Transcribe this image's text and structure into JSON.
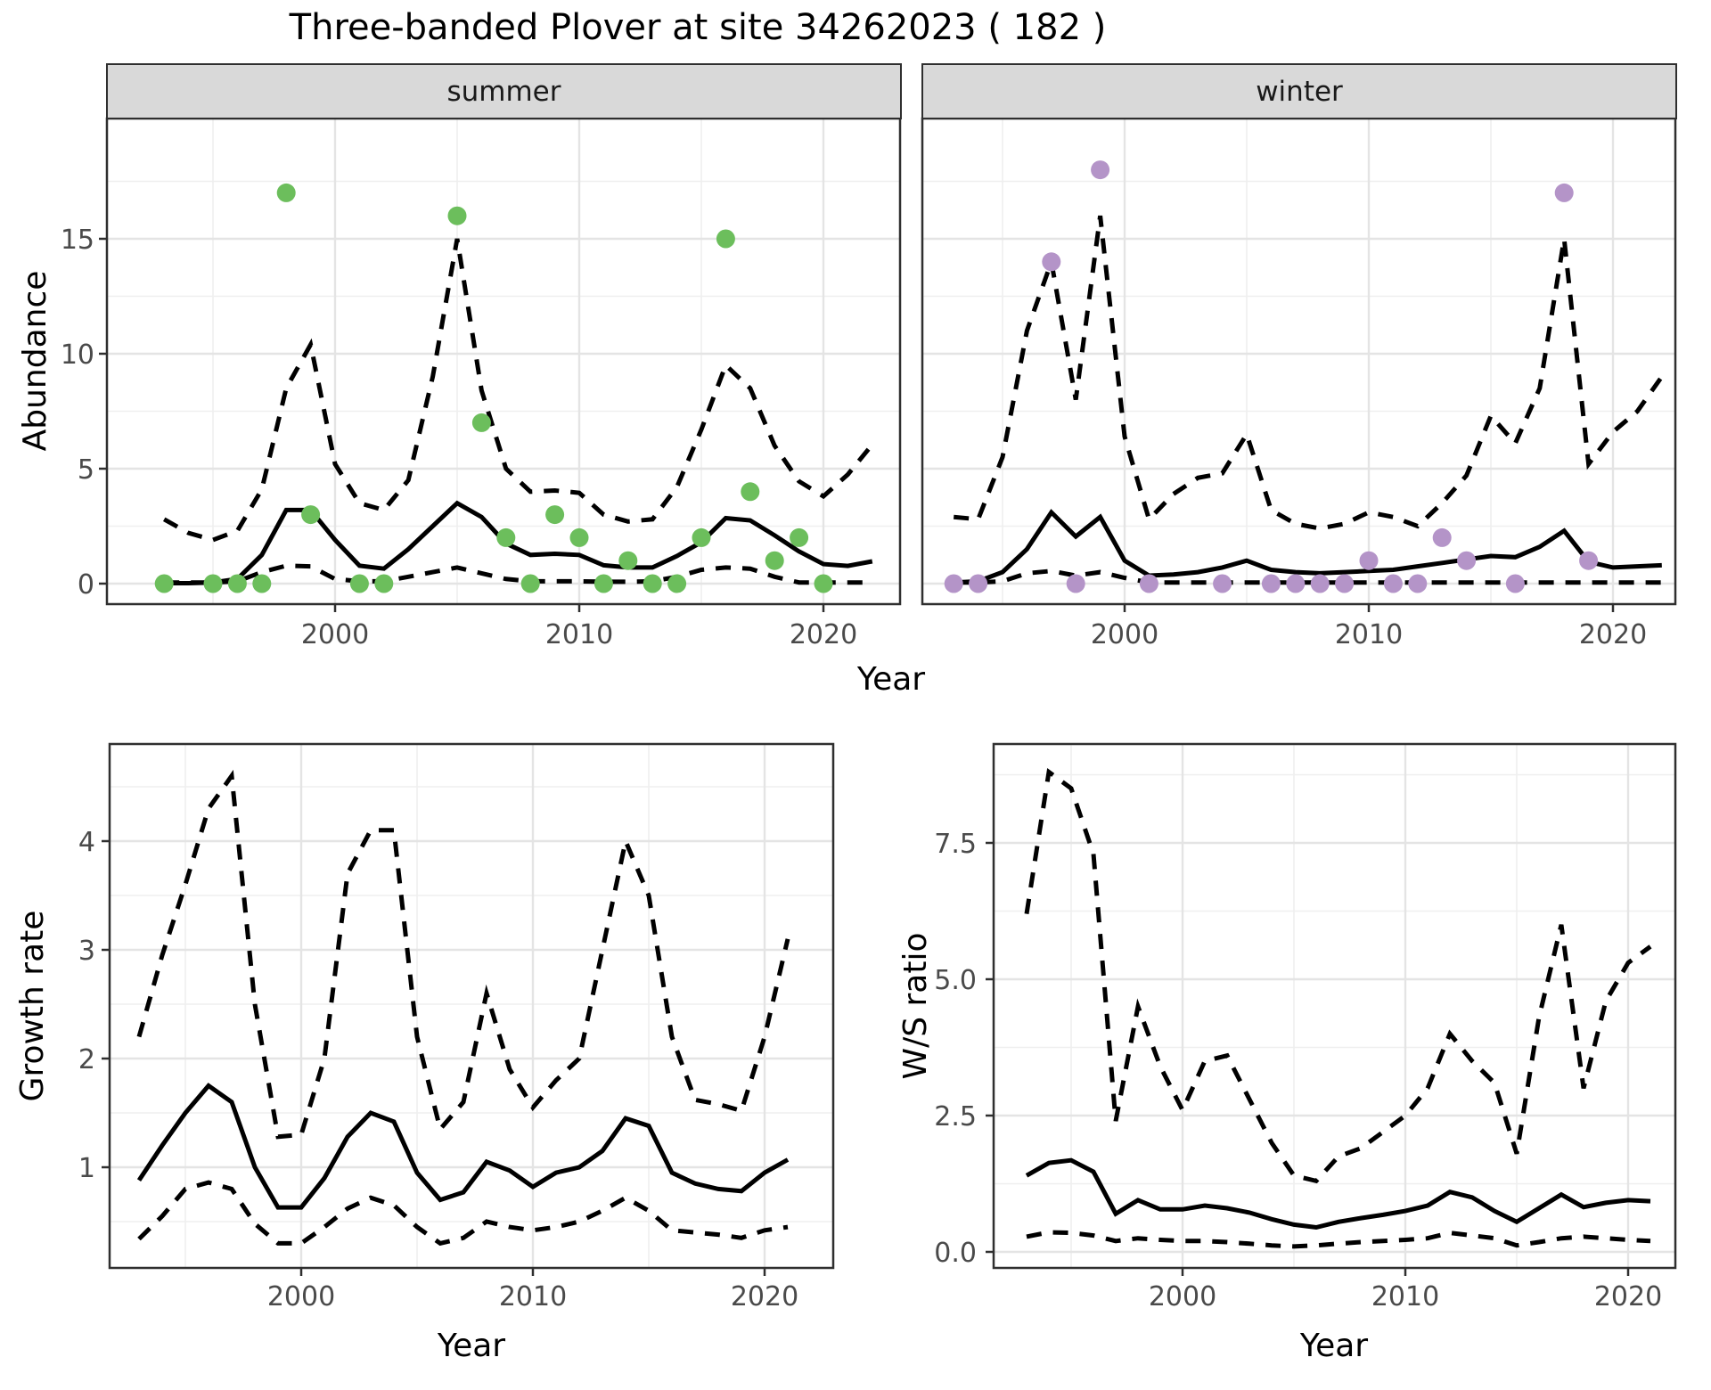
{
  "title": "Three-banded Plover at site 34262023 ( 182 )",
  "facets": [
    "summer",
    "winter"
  ],
  "axes": {
    "abundance": "Abundance",
    "year": "Year",
    "growth": "Growth rate",
    "ws": "W/S ratio"
  },
  "colors": {
    "summer_points": "#6CBE5C",
    "winter_points": "#B494C8",
    "line": "#000000",
    "grid_major": "#E4E4E4",
    "grid_minor": "#EFEFEF",
    "panel_border": "#2F2F2F",
    "tick_text": "#4A4A4A",
    "strip_bg": "#D9D9D9"
  },
  "chart_data": [
    {
      "type": "line",
      "facet": "summer",
      "title": "summer",
      "xlabel": "Year",
      "ylabel": "Abundance",
      "xlim": [
        1990.7,
        2022.9
      ],
      "ylim": [
        -0.9,
        20.2
      ],
      "x_ticks": [
        2000,
        2010,
        2020
      ],
      "x_minor": [
        1995,
        2005,
        2015
      ],
      "y_ticks": [
        0,
        5,
        10,
        15
      ],
      "y_minor": [
        2.5,
        7.5,
        12.5,
        17.5
      ],
      "grid": true,
      "legend": false,
      "series": [
        {
          "name": "observed_counts",
          "kind": "points",
          "color": "#6CBE5C",
          "x": [
            1993,
            1995,
            1996,
            1997,
            1998,
            1999,
            2001,
            2002,
            2005,
            2006,
            2007,
            2008,
            2009,
            2010,
            2011,
            2012,
            2013,
            2014,
            2015,
            2016,
            2017,
            2018,
            2019,
            2020
          ],
          "y": [
            0,
            0,
            0,
            0,
            17,
            3,
            0,
            0,
            16,
            7,
            2,
            0,
            3,
            2,
            0,
            1,
            0,
            0,
            2,
            15,
            4,
            1,
            2,
            0
          ]
        },
        {
          "name": "mean",
          "kind": "line",
          "style": "solid",
          "x": [
            1993,
            1994,
            1995,
            1996,
            1997,
            1998,
            1999,
            2000,
            2001,
            2002,
            2003,
            2004,
            2005,
            2006,
            2007,
            2008,
            2009,
            2010,
            2011,
            2012,
            2013,
            2014,
            2015,
            2016,
            2017,
            2018,
            2019,
            2020,
            2021,
            2022
          ],
          "y": [
            0.02,
            0.02,
            0.05,
            0.2,
            1.25,
            3.2,
            3.2,
            1.9,
            0.78,
            0.65,
            1.5,
            2.5,
            3.5,
            2.9,
            1.75,
            1.25,
            1.3,
            1.25,
            0.8,
            0.7,
            0.7,
            1.2,
            1.8,
            2.85,
            2.75,
            2.1,
            1.4,
            0.85,
            0.77,
            0.97
          ]
        },
        {
          "name": "upper_ci",
          "kind": "line",
          "style": "dashed",
          "x": [
            1993,
            1994,
            1995,
            1996,
            1997,
            1998,
            1999,
            2000,
            2001,
            2002,
            2003,
            2004,
            2005,
            2006,
            2007,
            2008,
            2009,
            2010,
            2011,
            2012,
            2013,
            2014,
            2015,
            2016,
            2017,
            2018,
            2019,
            2020,
            2021,
            2022
          ],
          "y": [
            2.8,
            2.2,
            1.9,
            2.3,
            4.1,
            8.5,
            10.4,
            5.2,
            3.5,
            3.2,
            4.5,
            9.0,
            15.0,
            8.4,
            5.0,
            4.0,
            4.05,
            3.95,
            3.0,
            2.7,
            2.8,
            4.2,
            6.7,
            9.5,
            8.5,
            6.0,
            4.45,
            3.8,
            4.75,
            6.05
          ]
        },
        {
          "name": "lower_ci",
          "kind": "line",
          "style": "dashed",
          "x": [
            1993,
            1994,
            1995,
            1996,
            1997,
            1998,
            1999,
            2000,
            2001,
            2002,
            2003,
            2004,
            2005,
            2006,
            2007,
            2008,
            2009,
            2010,
            2011,
            2012,
            2013,
            2014,
            2015,
            2016,
            2017,
            2018,
            2019,
            2020,
            2021,
            2022
          ],
          "y": [
            0.05,
            0.05,
            0.05,
            0.1,
            0.5,
            0.78,
            0.75,
            0.2,
            0.1,
            0.1,
            0.3,
            0.5,
            0.7,
            0.45,
            0.2,
            0.1,
            0.1,
            0.1,
            0.08,
            0.08,
            0.1,
            0.3,
            0.6,
            0.7,
            0.65,
            0.3,
            0.05,
            0.05,
            0.05,
            0.05
          ]
        }
      ]
    },
    {
      "type": "line",
      "facet": "winter",
      "title": "winter",
      "xlabel": "Year",
      "ylabel": "Abundance",
      "xlim": [
        1991.7,
        2022.6
      ],
      "ylim": [
        -0.9,
        20.2
      ],
      "x_ticks": [
        2000,
        2010,
        2020
      ],
      "x_minor": [
        1995,
        2005,
        2015
      ],
      "y_ticks": [
        0,
        5,
        10,
        15
      ],
      "y_minor": [
        2.5,
        7.5,
        12.5,
        17.5
      ],
      "grid": true,
      "legend": false,
      "series": [
        {
          "name": "observed_counts",
          "kind": "points",
          "color": "#B494C8",
          "x": [
            1993,
            1994,
            1997,
            1998,
            1999,
            2001,
            2004,
            2006,
            2007,
            2008,
            2009,
            2010,
            2011,
            2012,
            2013,
            2014,
            2016,
            2018,
            2019
          ],
          "y": [
            0,
            0,
            14,
            0,
            18,
            0,
            0,
            0,
            0,
            0,
            0,
            1,
            0,
            0,
            2,
            1,
            0,
            17,
            1
          ]
        },
        {
          "name": "mean",
          "kind": "line",
          "style": "solid",
          "x": [
            1993,
            1994,
            1995,
            1996,
            1997,
            1998,
            1999,
            2000,
            2001,
            2002,
            2003,
            2004,
            2005,
            2006,
            2007,
            2008,
            2009,
            2010,
            2011,
            2012,
            2013,
            2014,
            2015,
            2016,
            2017,
            2018,
            2019,
            2020,
            2021,
            2022
          ],
          "y": [
            0.05,
            0.1,
            0.5,
            1.5,
            3.1,
            2.05,
            2.9,
            1.0,
            0.35,
            0.4,
            0.5,
            0.7,
            1.0,
            0.6,
            0.5,
            0.45,
            0.5,
            0.55,
            0.6,
            0.75,
            0.9,
            1.05,
            1.2,
            1.15,
            1.6,
            2.3,
            0.95,
            0.7,
            0.75,
            0.8
          ]
        },
        {
          "name": "upper_ci",
          "kind": "line",
          "style": "dashed",
          "x": [
            1993,
            1994,
            1995,
            1996,
            1997,
            1998,
            1999,
            2000,
            2001,
            2002,
            2003,
            2004,
            2005,
            2006,
            2007,
            2008,
            2009,
            2010,
            2011,
            2012,
            2013,
            2014,
            2015,
            2016,
            2017,
            2018,
            2019,
            2020,
            2021,
            2022
          ],
          "y": [
            2.9,
            2.8,
            5.5,
            11.0,
            14.0,
            8.0,
            16.0,
            6.4,
            2.8,
            3.9,
            4.6,
            4.8,
            6.5,
            3.2,
            2.6,
            2.4,
            2.6,
            3.1,
            2.9,
            2.5,
            3.5,
            4.7,
            7.3,
            6.1,
            8.5,
            15.0,
            5.2,
            6.6,
            7.5,
            9.0
          ]
        },
        {
          "name": "lower_ci",
          "kind": "line",
          "style": "dashed",
          "x": [
            1993,
            1994,
            1995,
            1996,
            1997,
            1998,
            1999,
            2000,
            2001,
            2002,
            2003,
            2004,
            2005,
            2006,
            2007,
            2008,
            2009,
            2010,
            2011,
            2012,
            2013,
            2014,
            2015,
            2016,
            2017,
            2018,
            2019,
            2020,
            2021,
            2022
          ],
          "y": [
            0.05,
            0.05,
            0.1,
            0.45,
            0.55,
            0.35,
            0.5,
            0.25,
            0.05,
            0.05,
            0.05,
            0.05,
            0.05,
            0.05,
            0.05,
            0.05,
            0.05,
            0.05,
            0.05,
            0.05,
            0.05,
            0.05,
            0.05,
            0.05,
            0.05,
            0.05,
            0.05,
            0.05,
            0.05,
            0.05
          ]
        }
      ]
    },
    {
      "type": "line",
      "facet": "growth",
      "title": "Growth rate",
      "xlabel": "Year",
      "ylabel": "Growth rate",
      "xlim": [
        1991.7,
        2022.9
      ],
      "ylim": [
        0.07,
        4.89
      ],
      "x_ticks": [
        2000,
        2010,
        2020
      ],
      "x_minor": [
        1995,
        2005,
        2015
      ],
      "y_ticks": [
        1,
        2,
        3,
        4
      ],
      "y_minor": [
        0.5,
        1.5,
        2.5,
        3.5,
        4.5
      ],
      "grid": true,
      "legend": false,
      "series": [
        {
          "name": "mean",
          "kind": "line",
          "style": "solid",
          "x": [
            1993,
            1994,
            1995,
            1996,
            1997,
            1998,
            1999,
            2000,
            2001,
            2002,
            2003,
            2004,
            2005,
            2006,
            2007,
            2008,
            2009,
            2010,
            2011,
            2012,
            2013,
            2014,
            2015,
            2016,
            2017,
            2018,
            2019,
            2020,
            2021
          ],
          "y": [
            0.88,
            1.2,
            1.5,
            1.75,
            1.6,
            1.0,
            0.63,
            0.63,
            0.9,
            1.28,
            1.5,
            1.42,
            0.95,
            0.7,
            0.77,
            1.05,
            0.97,
            0.82,
            0.95,
            1.0,
            1.15,
            1.45,
            1.38,
            0.95,
            0.85,
            0.8,
            0.78,
            0.95,
            1.07
          ]
        },
        {
          "name": "upper_ci",
          "kind": "line",
          "style": "dashed",
          "x": [
            1993,
            1994,
            1995,
            1996,
            1997,
            1998,
            1999,
            2000,
            2001,
            2002,
            2003,
            2004,
            2005,
            2006,
            2007,
            2008,
            2009,
            2010,
            2011,
            2012,
            2013,
            2014,
            2015,
            2016,
            2017,
            2018,
            2019,
            2020,
            2021
          ],
          "y": [
            2.2,
            2.95,
            3.6,
            4.3,
            4.6,
            2.5,
            1.28,
            1.3,
            2.0,
            3.7,
            4.1,
            4.1,
            2.2,
            1.35,
            1.6,
            2.6,
            1.9,
            1.55,
            1.8,
            2.0,
            3.0,
            4.0,
            3.5,
            2.2,
            1.62,
            1.58,
            1.52,
            2.2,
            3.1
          ]
        },
        {
          "name": "lower_ci",
          "kind": "line",
          "style": "dashed",
          "x": [
            1993,
            1994,
            1995,
            1996,
            1997,
            1998,
            1999,
            2000,
            2001,
            2002,
            2003,
            2004,
            2005,
            2006,
            2007,
            2008,
            2009,
            2010,
            2011,
            2012,
            2013,
            2014,
            2015,
            2016,
            2017,
            2018,
            2019,
            2020,
            2021
          ],
          "y": [
            0.34,
            0.55,
            0.8,
            0.86,
            0.8,
            0.48,
            0.3,
            0.3,
            0.45,
            0.62,
            0.72,
            0.65,
            0.45,
            0.3,
            0.35,
            0.5,
            0.45,
            0.42,
            0.45,
            0.5,
            0.6,
            0.72,
            0.6,
            0.42,
            0.4,
            0.38,
            0.35,
            0.42,
            0.45
          ]
        }
      ]
    },
    {
      "type": "line",
      "facet": "ws",
      "title": "W/S ratio",
      "xlabel": "Year",
      "ylabel": "W/S ratio",
      "xlim": [
        1991.5,
        2022.1
      ],
      "ylim": [
        -0.3,
        9.3
      ],
      "x_ticks": [
        2000,
        2010,
        2020
      ],
      "x_minor": [
        1995,
        2005,
        2015
      ],
      "y_ticks": [
        0.0,
        2.5,
        5.0,
        7.5
      ],
      "y_tick_labels": [
        "0.0",
        "2.5",
        "5.0",
        "7.5"
      ],
      "y_minor": [
        1.25,
        3.75,
        6.25,
        8.75
      ],
      "grid": true,
      "legend": false,
      "series": [
        {
          "name": "mean",
          "kind": "line",
          "style": "solid",
          "x": [
            1993,
            1994,
            1995,
            1996,
            1997,
            1998,
            1999,
            2000,
            2001,
            2002,
            2003,
            2004,
            2005,
            2006,
            2007,
            2008,
            2009,
            2010,
            2011,
            2012,
            2013,
            2014,
            2015,
            2016,
            2017,
            2018,
            2019,
            2020,
            2021
          ],
          "y": [
            1.4,
            1.63,
            1.68,
            1.47,
            0.7,
            0.95,
            0.78,
            0.78,
            0.85,
            0.8,
            0.72,
            0.6,
            0.5,
            0.45,
            0.55,
            0.62,
            0.68,
            0.75,
            0.85,
            1.1,
            1.0,
            0.75,
            0.55,
            0.8,
            1.05,
            0.82,
            0.9,
            0.95,
            0.93
          ]
        },
        {
          "name": "upper_ci",
          "kind": "line",
          "style": "dashed",
          "x": [
            1993,
            1994,
            1995,
            1996,
            1997,
            1998,
            1999,
            2000,
            2001,
            2002,
            2003,
            2004,
            2005,
            2006,
            2007,
            2008,
            2009,
            2010,
            2011,
            2012,
            2013,
            2014,
            2015,
            2016,
            2017,
            2018,
            2019,
            2020,
            2021
          ],
          "y": [
            6.2,
            8.8,
            8.5,
            7.3,
            2.4,
            4.5,
            3.4,
            2.6,
            3.5,
            3.6,
            2.8,
            2.0,
            1.4,
            1.3,
            1.75,
            1.9,
            2.2,
            2.5,
            3.0,
            4.0,
            3.5,
            3.1,
            1.8,
            4.3,
            6.0,
            3.0,
            4.6,
            5.3,
            5.6
          ]
        },
        {
          "name": "lower_ci",
          "kind": "line",
          "style": "dashed",
          "x": [
            1993,
            1994,
            1995,
            1996,
            1997,
            1998,
            1999,
            2000,
            2001,
            2002,
            2003,
            2004,
            2005,
            2006,
            2007,
            2008,
            2009,
            2010,
            2011,
            2012,
            2013,
            2014,
            2015,
            2016,
            2017,
            2018,
            2019,
            2020,
            2021
          ],
          "y": [
            0.28,
            0.36,
            0.35,
            0.3,
            0.2,
            0.25,
            0.22,
            0.2,
            0.2,
            0.18,
            0.15,
            0.12,
            0.1,
            0.12,
            0.15,
            0.18,
            0.2,
            0.22,
            0.25,
            0.35,
            0.3,
            0.25,
            0.12,
            0.18,
            0.25,
            0.28,
            0.25,
            0.22,
            0.2
          ]
        }
      ]
    }
  ]
}
